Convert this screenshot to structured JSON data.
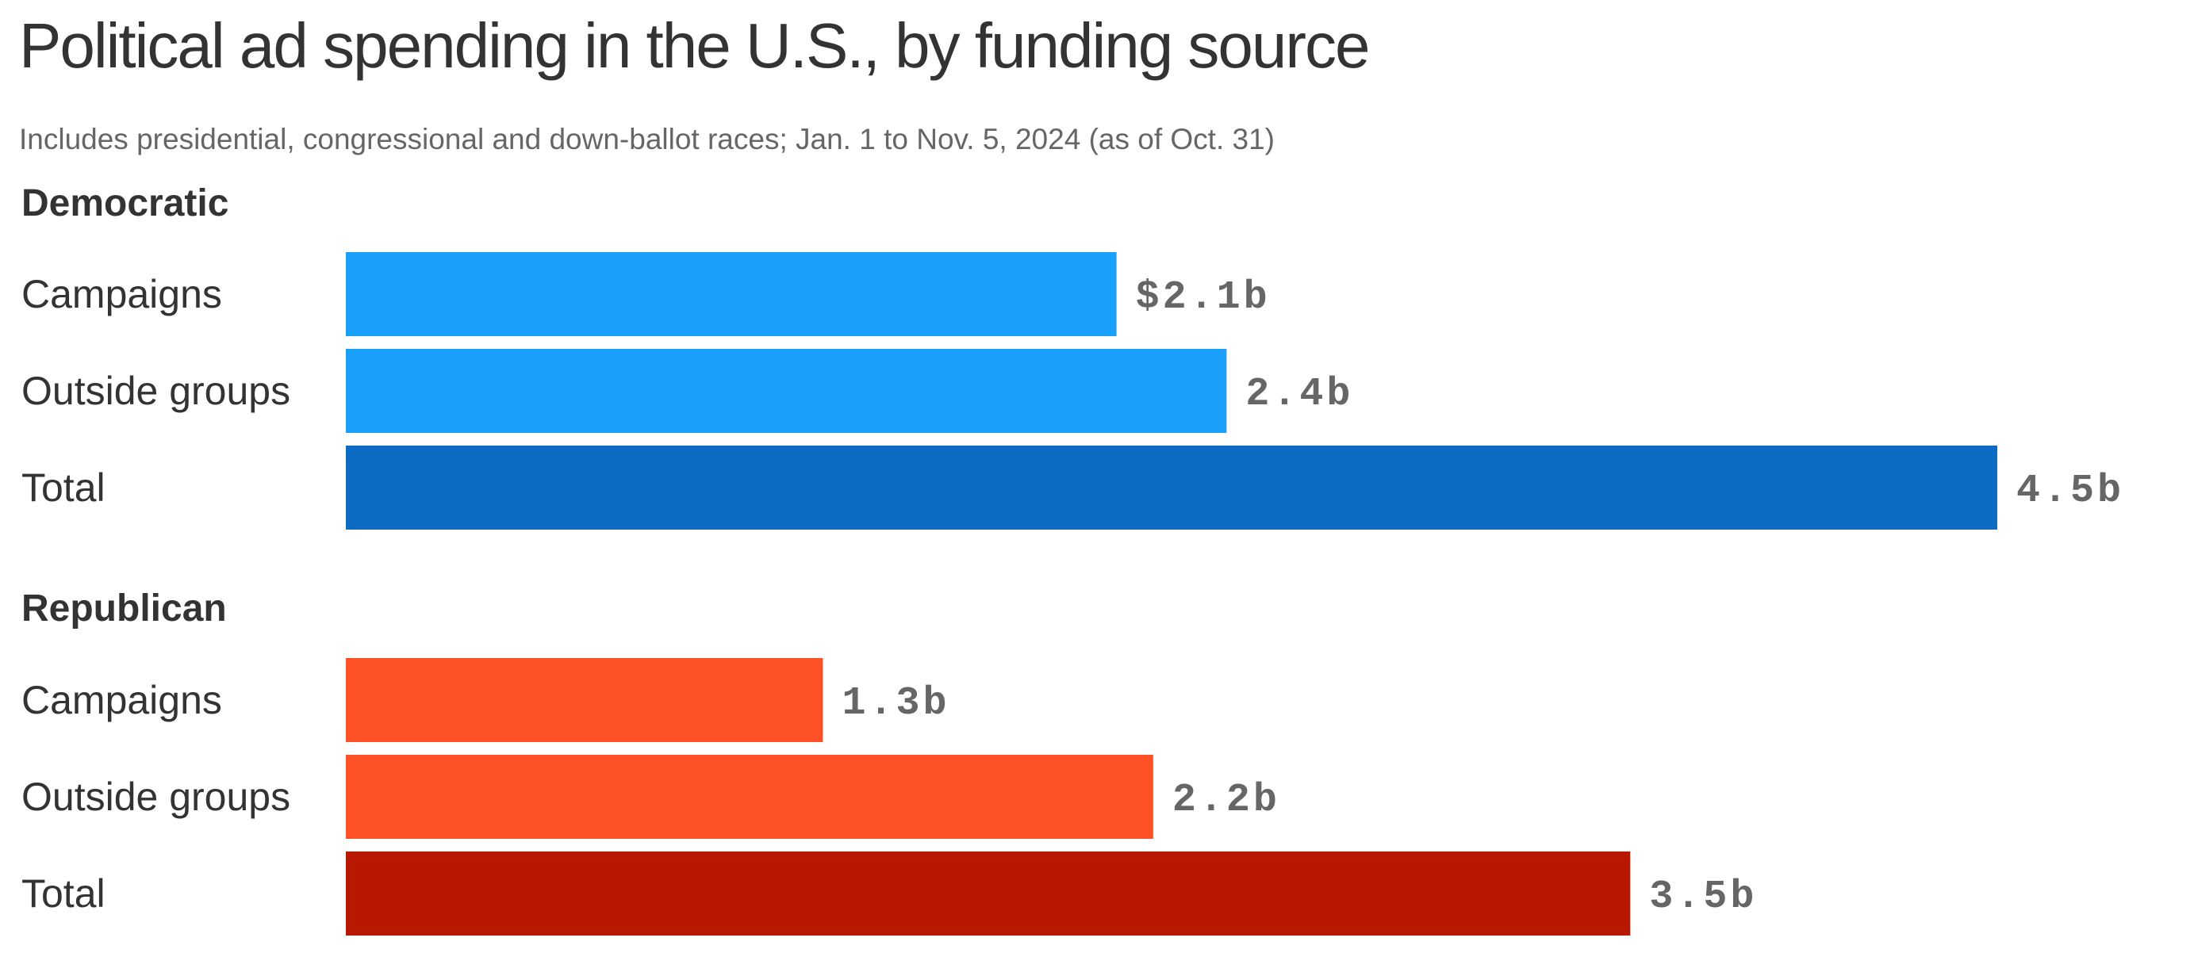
{
  "chart_data": {
    "type": "bar",
    "orientation": "horizontal",
    "title": "Political ad spending in the U.S., by funding source",
    "subtitle": "Includes presidential, congressional and down-ballot races; Jan. 1 to Nov. 5, 2024 (as of Oct. 31)",
    "unit": "billions of dollars",
    "xlim": [
      0,
      4.5
    ],
    "grid": false,
    "groups": [
      {
        "name": "Democratic",
        "bars": [
          {
            "category": "Campaigns",
            "value": 2.1,
            "label": "$2.1b",
            "color": "#18a0fb"
          },
          {
            "category": "Outside groups",
            "value": 2.4,
            "label": "2.4b",
            "color": "#18a0fb"
          },
          {
            "category": "Total",
            "value": 4.5,
            "label": "4.5b",
            "color": "#0c6bc2"
          }
        ]
      },
      {
        "name": "Republican",
        "bars": [
          {
            "category": "Campaigns",
            "value": 1.3,
            "label": "1.3b",
            "color": "#ff5026"
          },
          {
            "category": "Outside groups",
            "value": 2.2,
            "label": "2.2b",
            "color": "#ff5026"
          },
          {
            "category": "Total",
            "value": 3.5,
            "label": "3.5b",
            "color": "#b81800"
          }
        ]
      }
    ]
  }
}
